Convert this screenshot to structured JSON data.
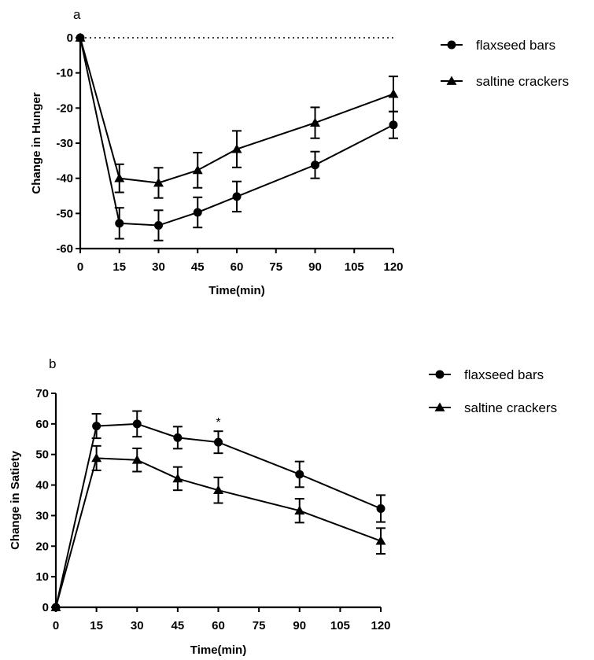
{
  "chart_data": [
    {
      "panel_label": "a",
      "type": "line",
      "xlabel": "Time(min)",
      "ylabel": "Change in Hunger",
      "xlim": [
        0,
        120
      ],
      "ylim": [
        -60,
        0
      ],
      "xticks": [
        0,
        15,
        30,
        45,
        60,
        75,
        90,
        105,
        120
      ],
      "yticks": [
        0,
        -10,
        -20,
        -30,
        -40,
        -50,
        -60
      ],
      "reference_line": {
        "y": 0,
        "style": "dotted"
      },
      "legend": "right",
      "x": [
        0,
        15,
        30,
        45,
        60,
        90,
        120
      ],
      "series": [
        {
          "name": "flaxseed bars",
          "marker": "circle",
          "values": [
            0,
            -52.8,
            -53.4,
            -49.7,
            -45.2,
            -36.2,
            -24.8
          ],
          "errors": [
            0,
            4.4,
            4.3,
            4.3,
            4.3,
            3.8,
            3.8
          ]
        },
        {
          "name": "saltine crackers",
          "marker": "triangle",
          "values": [
            0,
            -40.0,
            -41.3,
            -37.7,
            -31.7,
            -24.2,
            -16.0
          ],
          "errors": [
            0,
            4.0,
            4.3,
            5.0,
            5.2,
            4.4,
            5.0
          ]
        }
      ]
    },
    {
      "panel_label": "b",
      "type": "line",
      "xlabel": "Time(min)",
      "ylabel": "Change in Satiety",
      "xlim": [
        0,
        120
      ],
      "ylim": [
        0,
        70
      ],
      "xticks": [
        0,
        15,
        30,
        45,
        60,
        75,
        90,
        105,
        120
      ],
      "yticks": [
        0,
        10,
        20,
        30,
        40,
        50,
        60,
        70
      ],
      "legend": "top-right",
      "annotations": [
        {
          "x": 60,
          "text": "*"
        }
      ],
      "x": [
        0,
        15,
        30,
        45,
        60,
        90,
        120
      ],
      "series": [
        {
          "name": "flaxseed bars",
          "marker": "circle",
          "values": [
            0,
            59.3,
            60.0,
            55.5,
            54.0,
            43.5,
            32.3
          ],
          "errors": [
            0,
            4.0,
            4.2,
            3.6,
            3.6,
            4.2,
            4.4
          ]
        },
        {
          "name": "saltine crackers",
          "marker": "triangle",
          "values": [
            0,
            48.8,
            48.2,
            42.1,
            38.3,
            31.6,
            21.7
          ],
          "errors": [
            0,
            4.0,
            3.8,
            3.8,
            4.2,
            3.9,
            4.2
          ]
        }
      ]
    }
  ]
}
